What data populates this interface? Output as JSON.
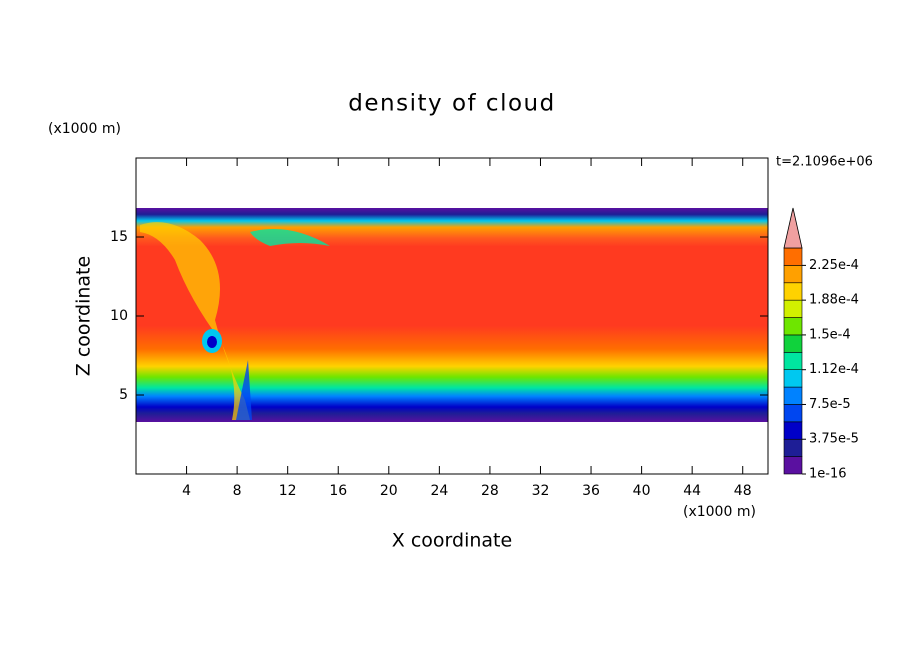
{
  "chart_data": {
    "type": "contour",
    "title": "density of cloud",
    "x_label": "X coordinate",
    "y_label": "Z coordinate",
    "x_unit": "(x1000 m)",
    "y_unit": "(x1000 m)",
    "annotation": "t=2.1096e+06",
    "xlim": [
      0,
      50
    ],
    "xticks": [
      4,
      8,
      12,
      16,
      20,
      24,
      28,
      32,
      36,
      40,
      44,
      48
    ],
    "ylim": [
      0,
      20
    ],
    "yticks": [
      5,
      10,
      15
    ],
    "colorbar": {
      "lim": [
        1e-16,
        0.00024375
      ],
      "ticks": [
        1e-16,
        {
          "value": 3.75e-05,
          "label": "3.75e-5"
        },
        {
          "value": 7.5e-05,
          "label": "7.5e-5"
        },
        {
          "value": 0.0001125,
          "label": "1.12e-4"
        },
        {
          "value": 0.00015,
          "label": "1.5e-4"
        },
        {
          "value": 0.0001875,
          "label": "1.88e-4"
        },
        {
          "value": 0.000225,
          "label": "2.25e-4"
        }
      ],
      "colors": [
        "#5a10a0",
        "#1e1e96",
        "#0000c8",
        "#0046f0",
        "#0082ff",
        "#00c8f0",
        "#00e6a0",
        "#10d23c",
        "#6ee600",
        "#d2f000",
        "#ffd200",
        "#ffa000",
        "#ff6e00"
      ],
      "extend_color": "#f0a0a0"
    }
  }
}
